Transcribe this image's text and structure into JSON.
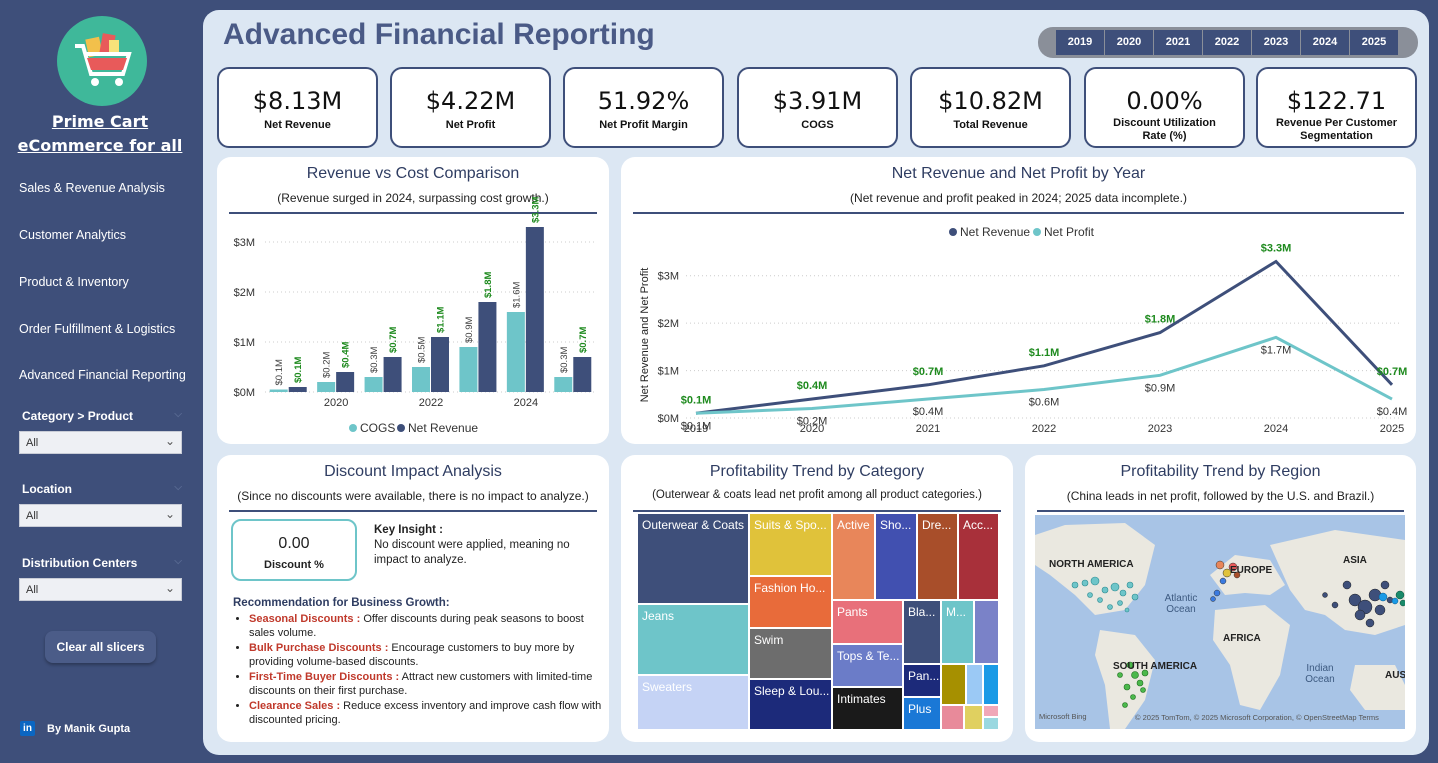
{
  "sidebar": {
    "brand_line1": "Prime Cart",
    "brand_line2": "eCommerce for all",
    "nav": [
      "Sales & Revenue Analysis",
      "Customer Analytics",
      "Product & Inventory",
      "Order Fulfillment & Logistics",
      "Advanced Financial Reporting"
    ],
    "slicers": [
      {
        "label": "Category > Product",
        "value": "All"
      },
      {
        "label": "Location",
        "value": "All"
      },
      {
        "label": "Distribution Centers",
        "value": "All"
      }
    ],
    "clear_label": "Clear all slicers",
    "author": "By Manik Gupta",
    "linkedin": "in"
  },
  "header": {
    "title": "Advanced Financial Reporting",
    "years": [
      "2019",
      "2020",
      "2021",
      "2022",
      "2023",
      "2024",
      "2025"
    ]
  },
  "kpis": [
    {
      "value": "$8.13M",
      "label": "Net Revenue"
    },
    {
      "value": "$4.22M",
      "label": "Net Profit"
    },
    {
      "value": "51.92%",
      "label": "Net Profit Margin"
    },
    {
      "value": "$3.91M",
      "label": "COGS"
    },
    {
      "value": "$10.82M",
      "label": "Total Revenue"
    },
    {
      "value": "0.00%",
      "label": "Discount Utilization Rate (%)"
    },
    {
      "value": "$122.71",
      "label": "Revenue Per Customer Segmentation"
    }
  ],
  "colors": {
    "cogs": "#6ec5c9",
    "net_revenue": "#3e4f7a",
    "label_green": "#1e8a1e",
    "net_profit_line": "#6ec5c9"
  },
  "revenue_cost": {
    "title": "Revenue vs Cost Comparison",
    "subtitle": "(Revenue surged in 2024, surpassing cost growth.)"
  },
  "net_by_year": {
    "title": "Net Revenue and Net Profit by Year",
    "subtitle": "(Net revenue and profit peaked in 2024; 2025 data incomplete.)"
  },
  "discount": {
    "title": "Discount Impact Analysis",
    "subtitle": "(Since no discounts were available, there is no impact to analyze.)",
    "value": "0.00",
    "label": "Discount %",
    "insight_title": "Key Insight :",
    "insight_text": "No discount were applied, meaning no impact to analyze.",
    "rec_title": "Recommendation for Business Growth:",
    "recs": [
      {
        "k": "Seasonal Discounts :",
        "t": " Offer discounts during peak seasons to boost sales volume."
      },
      {
        "k": "Bulk Purchase Discounts :",
        "t": " Encourage customers to buy more by providing volume-based discounts."
      },
      {
        "k": "First-Time Buyer Discounts :",
        "t": " Attract new customers with limited-time discounts on their first purchase."
      },
      {
        "k": "Clearance Sales :",
        "t": " Reduce excess inventory and improve cash flow with discounted pricing."
      }
    ]
  },
  "category": {
    "title": "Profitability Trend by Category",
    "subtitle": "(Outerwear & coats lead net profit among all product categories.)",
    "tiles": [
      "Outerwear & Coats",
      "Jeans",
      "Sweaters",
      "Suits & Spo...",
      "Fashion Ho...",
      "Swim",
      "Sleep & Lou...",
      "Active",
      "Sho...",
      "Dre...",
      "Acc...",
      "Pants",
      "Tops & Te...",
      "Intimates",
      "Bla...",
      "M...",
      "Pan...",
      "Plus"
    ]
  },
  "region": {
    "title": "Profitability Trend by Region",
    "subtitle": "(China leads in net profit, followed by the U.S. and Brazil.)",
    "labels": [
      "NORTH AMERICA",
      "EUROPE",
      "ASIA",
      "AFRICA",
      "SOUTH AMERICA",
      "AUSTR"
    ],
    "oceans": [
      "Atlantic Ocean",
      "Indian Ocean"
    ],
    "credit_brand": "Microsoft Bing",
    "credit": "© 2025 TomTom, © 2025 Microsoft Corporation, © OpenStreetMap  Terms"
  },
  "chart_data": [
    {
      "type": "bar",
      "title": "Revenue vs Cost Comparison",
      "subtitle": "(Revenue surged in 2024, surpassing cost growth.)",
      "categories": [
        "2019",
        "2020",
        "2021",
        "2022",
        "2023",
        "2024",
        "2025"
      ],
      "tick_labels": [
        "2020",
        "2022",
        "2024"
      ],
      "series": [
        {
          "name": "COGS",
          "values": [
            0.05,
            0.2,
            0.3,
            0.5,
            0.9,
            1.6,
            0.3
          ],
          "labels": [
            "$0.1M",
            "$0.2M",
            "$0.3M",
            "$0.5M",
            "$0.9M",
            "$1.6M",
            "$0.3M"
          ]
        },
        {
          "name": "Net Revenue",
          "values": [
            0.1,
            0.4,
            0.7,
            1.1,
            1.8,
            3.3,
            0.7
          ],
          "labels": [
            "$0.1M",
            "$0.4M",
            "$0.7M",
            "$1.1M",
            "$1.8M",
            "$3.3M",
            "$0.7M"
          ]
        }
      ],
      "ylim": [
        0,
        3.5
      ],
      "yticks": [
        "$0M",
        "$1M",
        "$2M",
        "$3M"
      ],
      "legend": "bottom",
      "grid": true
    },
    {
      "type": "line",
      "title": "Net Revenue and Net Profit by Year",
      "subtitle": "(Net revenue and profit peaked in 2024; 2025 data incomplete.)",
      "x": [
        "2019",
        "2020",
        "2021",
        "2022",
        "2023",
        "2024",
        "2025"
      ],
      "series": [
        {
          "name": "Net Revenue",
          "values": [
            0.1,
            0.4,
            0.7,
            1.1,
            1.8,
            3.3,
            0.7
          ],
          "labels": [
            "$0.1M",
            "$0.4M",
            "$0.7M",
            "$1.1M",
            "$1.8M",
            "$3.3M",
            "$0.7M"
          ]
        },
        {
          "name": "Net Profit",
          "values": [
            0.1,
            0.2,
            0.4,
            0.6,
            0.9,
            1.7,
            0.4
          ],
          "labels": [
            "$0.1M",
            "$0.2M",
            "$0.4M",
            "$0.6M",
            "$0.9M",
            "$1.7M",
            "$0.4M"
          ]
        }
      ],
      "ylabel": "Net Revenue and Net Profit",
      "ylim": [
        0,
        3.5
      ],
      "yticks": [
        "$0M",
        "$1M",
        "$2M",
        "$3M"
      ],
      "legend": "top",
      "grid": true
    }
  ]
}
